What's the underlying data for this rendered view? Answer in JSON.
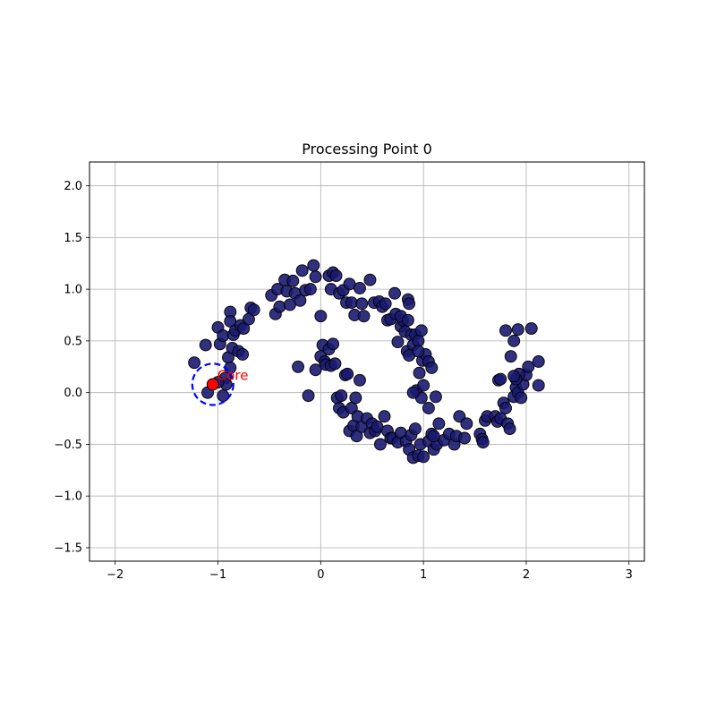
{
  "chart_data": {
    "type": "scatter",
    "title": "Processing Point 0",
    "xlabel": "",
    "ylabel": "",
    "xlim": [
      -2.25,
      3.15
    ],
    "ylim": [
      -1.63,
      2.23
    ],
    "xticks": [
      -2,
      -1,
      0,
      1,
      2,
      3
    ],
    "yticks": [
      -1.5,
      -1.0,
      -0.5,
      0.0,
      0.5,
      1.0,
      1.5,
      2.0
    ],
    "xtick_labels": [
      "−2",
      "−1",
      "0",
      "1",
      "2",
      "3"
    ],
    "ytick_labels": [
      "−1.5",
      "−1.0",
      "−0.5",
      "0.0",
      "0.5",
      "1.0",
      "1.5",
      "2.0"
    ],
    "grid": true,
    "colors": {
      "points": "#191970",
      "point_edge": "#000000",
      "highlight": "#ff0000",
      "neighborhood": "#0000ff",
      "annotation": "#ff0000",
      "grid": "#b0b0b0"
    },
    "highlight": {
      "x": -1.05,
      "y": 0.08,
      "label": "Core",
      "eps": 0.2
    },
    "series": [
      {
        "points": [
          [
            -1.23,
            0.29
          ],
          [
            -1.12,
            0.46
          ],
          [
            -1.1,
            0.0
          ],
          [
            -1.0,
            0.63
          ],
          [
            -0.98,
            0.47
          ],
          [
            -0.95,
            0.55
          ],
          [
            -0.93,
            0.14
          ],
          [
            -0.9,
            0.34
          ],
          [
            -0.88,
            0.78
          ],
          [
            -0.88,
            0.69
          ],
          [
            -0.86,
            0.43
          ],
          [
            -0.85,
            0.56
          ],
          [
            -0.83,
            0.6
          ],
          [
            -0.8,
            0.4
          ],
          [
            -0.78,
            0.65
          ],
          [
            -0.76,
            0.37
          ],
          [
            -0.75,
            0.62
          ],
          [
            -0.7,
            0.71
          ],
          [
            -0.68,
            0.82
          ],
          [
            -0.65,
            0.8
          ],
          [
            -0.88,
            0.24
          ],
          [
            -0.95,
            -0.03
          ],
          [
            -0.92,
            0.08
          ],
          [
            -1.0,
            0.1
          ],
          [
            -0.48,
            0.94
          ],
          [
            -0.44,
            0.76
          ],
          [
            -0.42,
            1.0
          ],
          [
            -0.4,
            0.83
          ],
          [
            -0.35,
            1.09
          ],
          [
            -0.33,
            0.98
          ],
          [
            -0.3,
            0.85
          ],
          [
            -0.27,
            1.08
          ],
          [
            -0.25,
            0.96
          ],
          [
            -0.2,
            0.89
          ],
          [
            -0.18,
            1.18
          ],
          [
            -0.15,
            0.99
          ],
          [
            -0.1,
            1.0
          ],
          [
            -0.07,
            1.23
          ],
          [
            -0.05,
            1.12
          ],
          [
            0.0,
            0.74
          ],
          [
            0.08,
            1.13
          ],
          [
            0.1,
            1.0
          ],
          [
            0.12,
            1.16
          ],
          [
            0.15,
            1.13
          ],
          [
            0.18,
            0.96
          ],
          [
            0.22,
            0.99
          ],
          [
            0.25,
            0.87
          ],
          [
            0.28,
            1.05
          ],
          [
            0.3,
            0.87
          ],
          [
            0.33,
            0.75
          ],
          [
            0.38,
            1.01
          ],
          [
            0.4,
            0.86
          ],
          [
            0.42,
            0.74
          ],
          [
            0.48,
            1.09
          ],
          [
            0.52,
            0.87
          ],
          [
            0.57,
            0.88
          ],
          [
            0.6,
            0.83
          ],
          [
            0.63,
            0.86
          ],
          [
            0.65,
            0.7
          ],
          [
            0.68,
            0.71
          ],
          [
            0.72,
            0.96
          ],
          [
            0.73,
            0.76
          ],
          [
            0.75,
            0.49
          ],
          [
            0.78,
            0.64
          ],
          [
            0.8,
            0.7
          ],
          [
            0.82,
            0.59
          ],
          [
            0.84,
            0.4
          ],
          [
            0.85,
            0.9
          ],
          [
            0.86,
            0.86
          ],
          [
            0.88,
            0.56
          ],
          [
            0.9,
            0.46
          ],
          [
            0.92,
            0.56
          ],
          [
            0.95,
            0.5
          ],
          [
            0.98,
            0.6
          ],
          [
            0.78,
            0.74
          ],
          [
            0.85,
            0.7
          ],
          [
            0.86,
            0.36
          ],
          [
            -0.22,
            0.25
          ],
          [
            -0.12,
            -0.03
          ],
          [
            -0.05,
            0.22
          ],
          [
            0.0,
            0.35
          ],
          [
            0.02,
            0.46
          ],
          [
            0.04,
            0.3
          ],
          [
            0.05,
            0.27
          ],
          [
            0.08,
            0.42
          ],
          [
            0.1,
            0.26
          ],
          [
            0.12,
            0.47
          ],
          [
            0.14,
            0.28
          ],
          [
            0.16,
            -0.05
          ],
          [
            0.18,
            -0.15
          ],
          [
            0.2,
            -0.03
          ],
          [
            0.22,
            -0.19
          ],
          [
            0.24,
            0.17
          ],
          [
            0.26,
            0.18
          ],
          [
            0.28,
            -0.37
          ],
          [
            0.3,
            -0.15
          ],
          [
            0.32,
            -0.32
          ],
          [
            0.34,
            -0.05
          ],
          [
            0.35,
            -0.42
          ],
          [
            0.36,
            -0.23
          ],
          [
            0.38,
            0.12
          ],
          [
            0.4,
            -0.33
          ],
          [
            0.45,
            -0.25
          ],
          [
            0.48,
            -0.39
          ],
          [
            0.5,
            -0.3
          ],
          [
            0.53,
            -0.37
          ],
          [
            0.55,
            -0.33
          ],
          [
            0.58,
            -0.5
          ],
          [
            0.62,
            -0.23
          ],
          [
            0.65,
            -0.37
          ],
          [
            0.68,
            -0.44
          ],
          [
            0.7,
            -0.44
          ],
          [
            0.75,
            -0.48
          ],
          [
            0.78,
            -0.39
          ],
          [
            0.83,
            -0.47
          ],
          [
            0.86,
            -0.55
          ],
          [
            0.88,
            -0.41
          ],
          [
            0.9,
            -0.63
          ],
          [
            0.92,
            -0.35
          ],
          [
            0.95,
            -0.61
          ],
          [
            0.97,
            -0.5
          ],
          [
            1.05,
            -0.47
          ],
          [
            1.08,
            -0.4
          ],
          [
            1.1,
            -0.55
          ],
          [
            1.13,
            -0.5
          ],
          [
            1.15,
            -0.3
          ],
          [
            1.2,
            -0.46
          ],
          [
            1.25,
            -0.4
          ],
          [
            1.3,
            -0.5
          ],
          [
            1.32,
            -0.42
          ],
          [
            1.35,
            -0.23
          ],
          [
            1.4,
            -0.44
          ],
          [
            1.42,
            -0.3
          ],
          [
            1.55,
            -0.4
          ],
          [
            1.57,
            -0.45
          ],
          [
            1.58,
            -0.48
          ],
          [
            1.6,
            -0.27
          ],
          [
            1.62,
            -0.23
          ],
          [
            1.7,
            -0.23
          ],
          [
            1.72,
            -0.28
          ],
          [
            1.75,
            -0.25
          ],
          [
            1.78,
            -0.1
          ],
          [
            1.8,
            -0.15
          ],
          [
            1.82,
            -0.3
          ],
          [
            1.84,
            -0.35
          ],
          [
            1.88,
            -0.04
          ],
          [
            1.9,
            0.05
          ],
          [
            1.92,
            0.0
          ],
          [
            1.95,
            -0.05
          ],
          [
            1.97,
            0.08
          ],
          [
            2.0,
            0.17
          ],
          [
            2.02,
            0.25
          ],
          [
            2.05,
            0.62
          ],
          [
            2.12,
            0.3
          ],
          [
            2.12,
            0.07
          ],
          [
            1.73,
            0.12
          ],
          [
            1.75,
            0.13
          ],
          [
            1.8,
            0.6
          ],
          [
            1.85,
            0.35
          ],
          [
            1.88,
            0.5
          ],
          [
            1.92,
            0.61
          ],
          [
            1.93,
            0.18
          ],
          [
            1.9,
            0.13
          ],
          [
            1.88,
            0.16
          ],
          [
            0.93,
            0.02
          ],
          [
            0.96,
            0.19
          ],
          [
            0.98,
            -0.05
          ],
          [
            0.99,
            0.31
          ],
          [
            1.0,
            0.07
          ],
          [
            1.02,
            0.37
          ],
          [
            1.05,
            0.3
          ],
          [
            1.08,
            0.24
          ],
          [
            1.12,
            -0.04
          ],
          [
            0.95,
            0.4
          ],
          [
            0.9,
            0.0
          ],
          [
            1.0,
            -0.62
          ],
          [
            1.1,
            -0.42
          ],
          [
            1.05,
            -0.15
          ]
        ]
      }
    ]
  }
}
